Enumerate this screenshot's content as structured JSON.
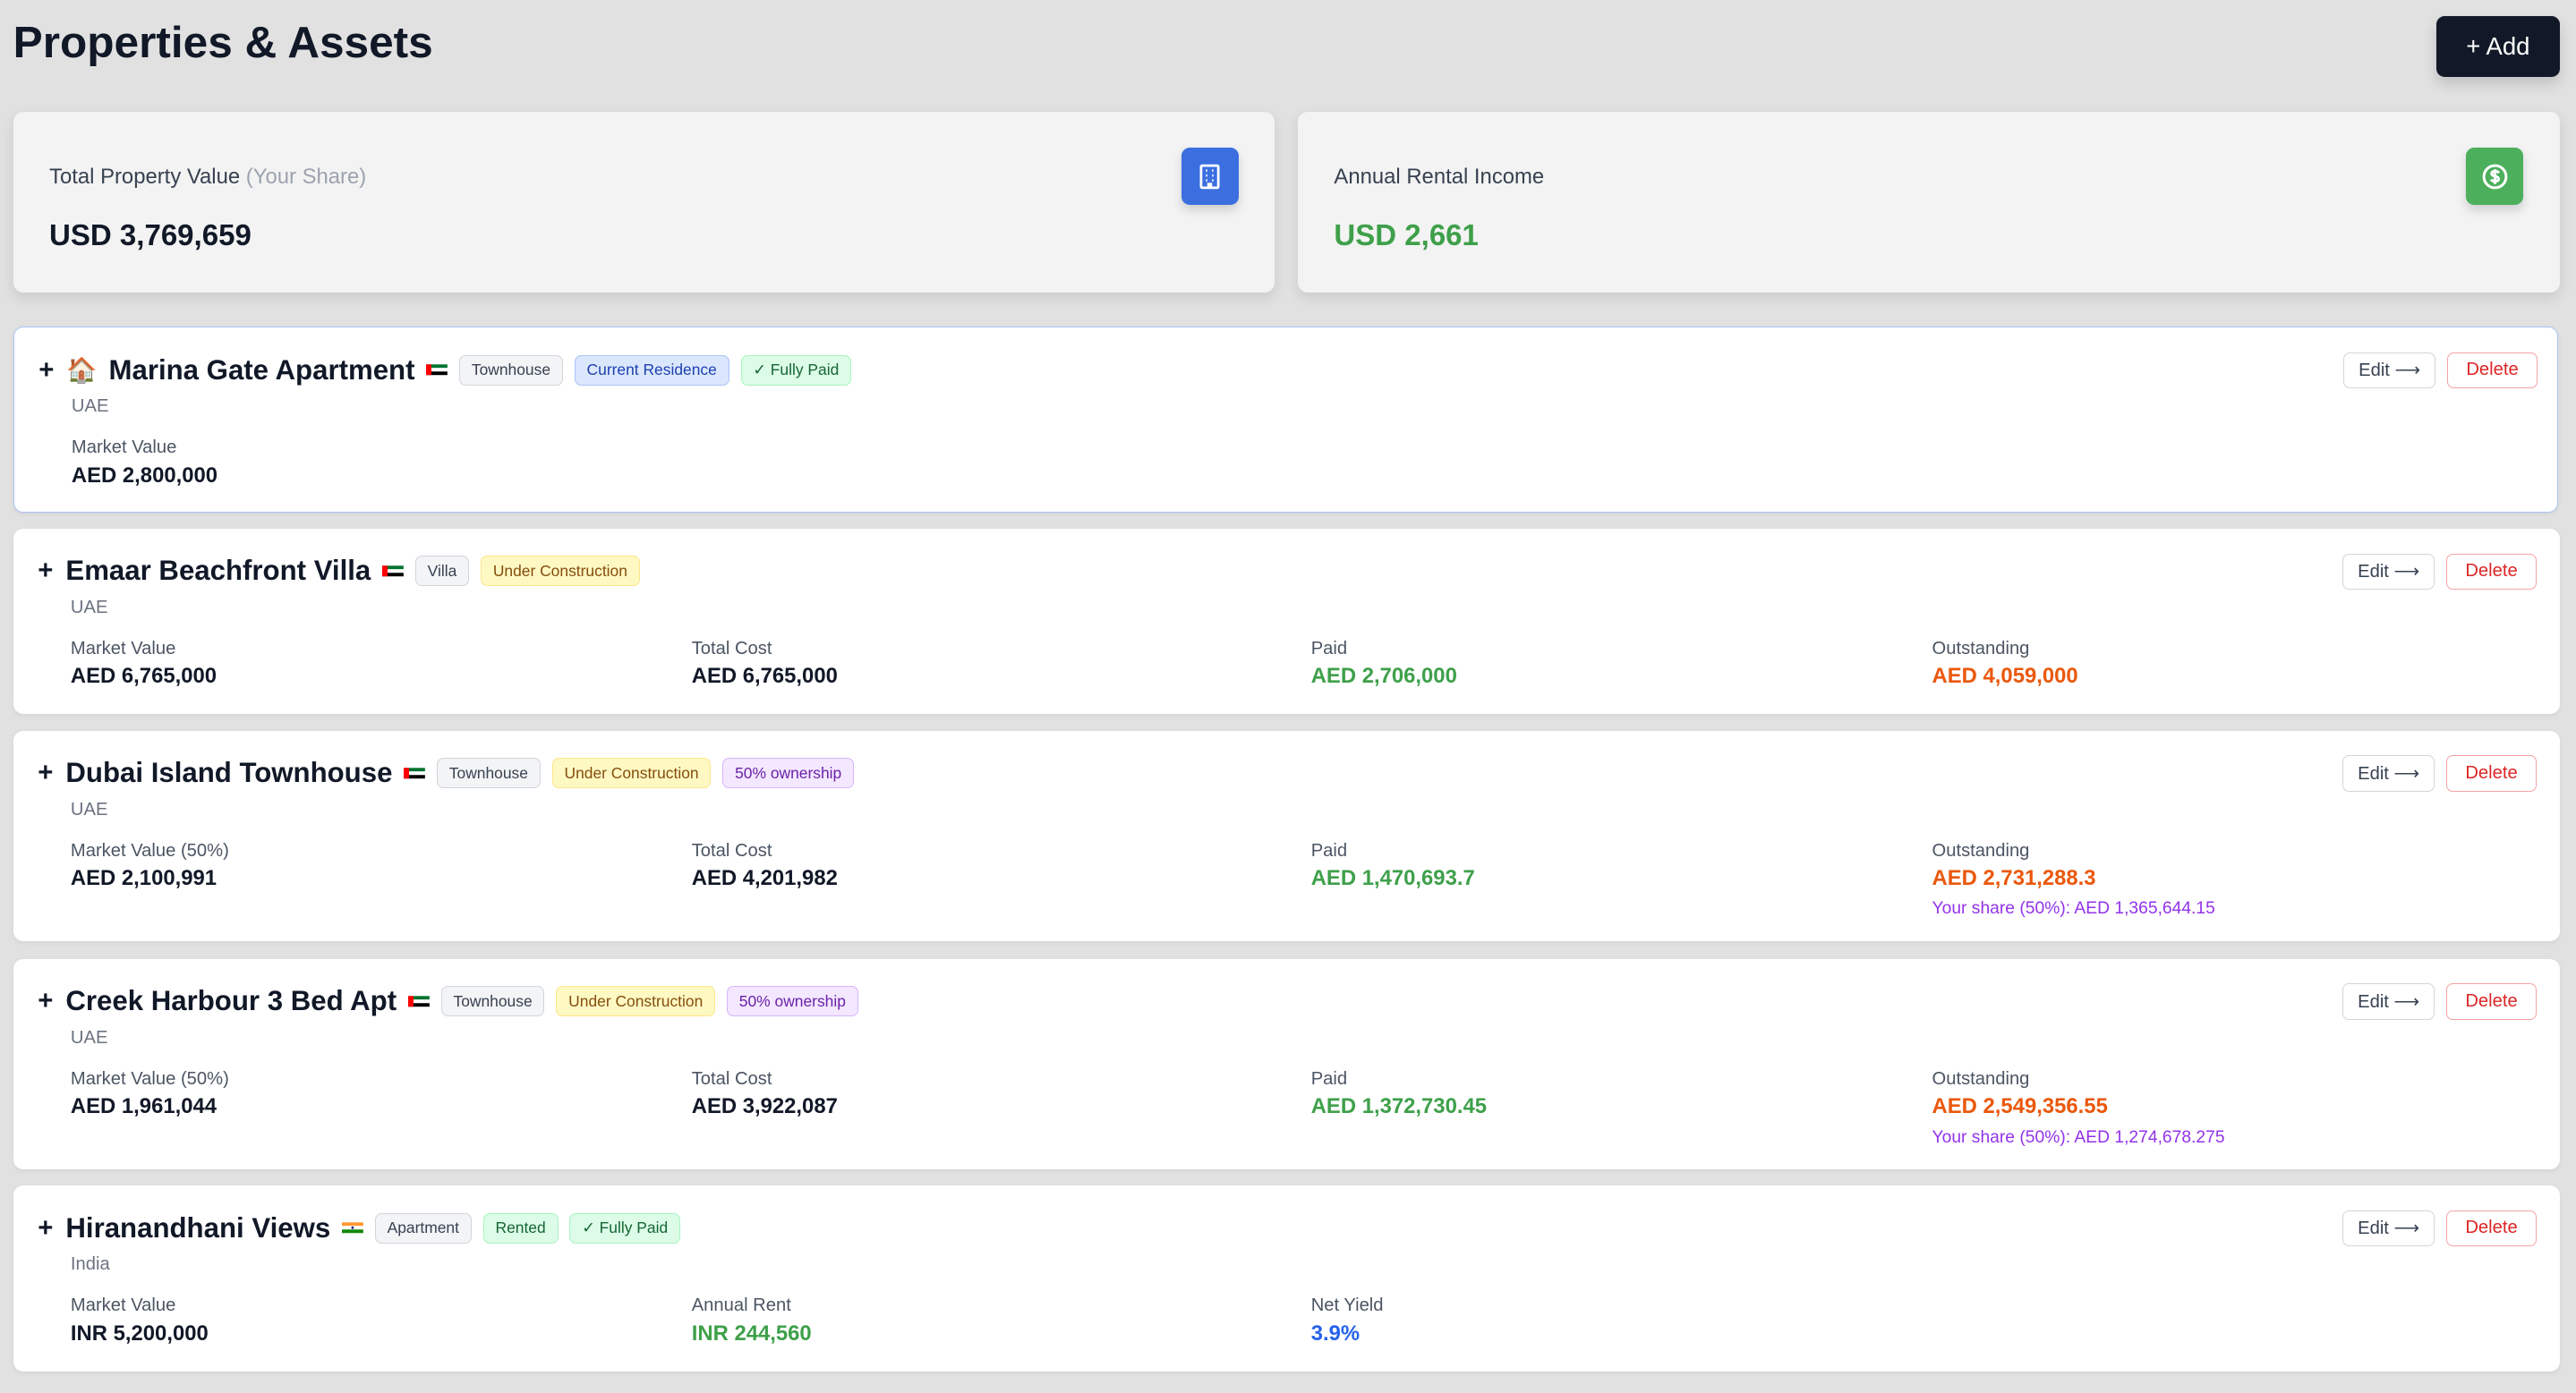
{
  "header": {
    "title": "Properties & Assets",
    "add_label": "+ Add"
  },
  "summary": [
    {
      "label": "Total Property Value",
      "label_muted": "(Your Share)",
      "value": "USD 3,769,659",
      "icon": "building-icon",
      "color": "#3b6fe0"
    },
    {
      "label": "Annual Rental Income",
      "label_muted": "",
      "value": "USD 2,661",
      "icon": "dollar-circle-icon",
      "color": "#4caf5c"
    }
  ],
  "actions": {
    "edit": "Edit ⟶",
    "delete": "Delete"
  },
  "properties": [
    {
      "expand": "+",
      "emoji": "🏠",
      "name": "Marina Gate Apartment",
      "flag": "uae-flag",
      "badges": [
        "Townhouse",
        "Current Residence",
        "✓ Fully Paid"
      ],
      "country": "UAE",
      "fields": [
        {
          "label": "Market Value",
          "value": "AED 2,800,000"
        }
      ]
    },
    {
      "expand": "+",
      "name": "Emaar Beachfront Villa",
      "flag": "uae-flag",
      "badges": [
        "Villa",
        "Under Construction"
      ],
      "country": "UAE",
      "fields": [
        {
          "label": "Market Value",
          "value": "AED 6,765,000"
        },
        {
          "label": "Total Cost",
          "value": "AED 6,765,000"
        },
        {
          "label": "Paid",
          "value": "AED 2,706,000"
        },
        {
          "label": "Outstanding",
          "value": "AED 4,059,000"
        }
      ]
    },
    {
      "expand": "+",
      "name": "Dubai Island Townhouse",
      "flag": "uae-flag",
      "badges": [
        "Townhouse",
        "Under Construction",
        "50% ownership"
      ],
      "country": "UAE",
      "fields": [
        {
          "label": "Market Value (50%)",
          "value": "AED 2,100,991"
        },
        {
          "label": "Total Cost",
          "value": "AED 4,201,982"
        },
        {
          "label": "Paid",
          "value": "AED 1,470,693.7"
        },
        {
          "label": "Outstanding",
          "value": "AED 2,731,288.3",
          "sub": "Your share (50%): AED 1,365,644.15"
        }
      ]
    },
    {
      "expand": "+",
      "name": "Creek Harbour 3 Bed Apt",
      "flag": "uae-flag",
      "badges": [
        "Townhouse",
        "Under Construction",
        "50% ownership"
      ],
      "country": "UAE",
      "fields": [
        {
          "label": "Market Value (50%)",
          "value": "AED 1,961,044"
        },
        {
          "label": "Total Cost",
          "value": "AED 3,922,087"
        },
        {
          "label": "Paid",
          "value": "AED 1,372,730.45"
        },
        {
          "label": "Outstanding",
          "value": "AED 2,549,356.55",
          "sub": "Your share (50%): AED 1,274,678.275"
        }
      ]
    },
    {
      "expand": "+",
      "name": "Hiranandhani Views",
      "flag": "india-flag",
      "badges": [
        "Apartment",
        "Rented",
        "✓ Fully Paid"
      ],
      "country": "India",
      "fields": [
        {
          "label": "Market Value",
          "value": "INR 5,200,000"
        },
        {
          "label": "Annual Rent",
          "value": "INR 244,560"
        },
        {
          "label": "Net Yield",
          "value": "3.9%"
        }
      ]
    }
  ]
}
